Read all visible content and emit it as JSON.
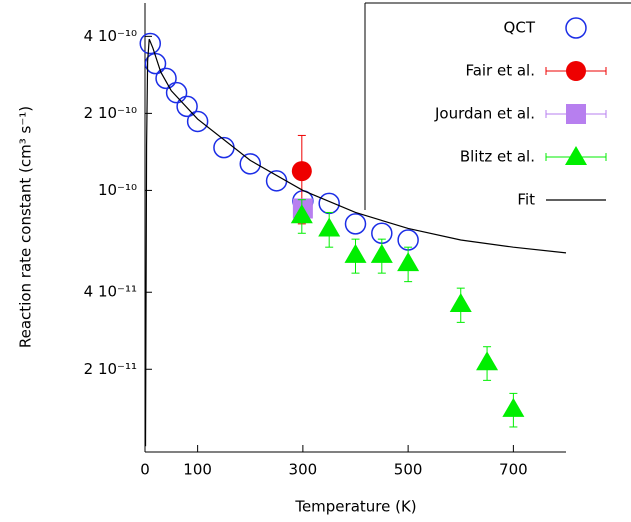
{
  "chart_data": {
    "type": "scatter",
    "xlabel": "Temperature (K)",
    "ylabel": "Reaction rate constant (cm³ s⁻¹)",
    "xlim": [
      0,
      800
    ],
    "xticks": [
      0,
      100,
      300,
      500,
      700
    ],
    "ylim": [
      9.5e-12,
      5.4e-10
    ],
    "yscale": "log",
    "yticks": [
      {
        "value": 4e-10,
        "label": "4 10⁻¹⁰"
      },
      {
        "value": 2e-10,
        "label": "2 10⁻¹⁰"
      },
      {
        "value": 1e-10,
        "label": "10⁻¹⁰"
      },
      {
        "value": 4e-11,
        "label": "4 10⁻¹¹"
      },
      {
        "value": 2e-11,
        "label": "2 10⁻¹¹"
      }
    ],
    "legend": "upper right",
    "series": [
      {
        "name": "QCT",
        "color": "#1c2ee6",
        "marker": "open-circle",
        "x": [
          10,
          20,
          40,
          60,
          80,
          100,
          150,
          200,
          250,
          300,
          350,
          400,
          450,
          500
        ],
        "values": [
          3.75e-10,
          3.13e-10,
          2.74e-10,
          2.41e-10,
          2.13e-10,
          1.86e-10,
          1.47e-10,
          1.27e-10,
          1.09e-10,
          9.1e-11,
          8.9e-11,
          7.4e-11,
          6.8e-11,
          6.4e-11
        ]
      },
      {
        "name": "Fair et al.",
        "color": "#ee0000",
        "marker": "circle",
        "x": [
          298
        ],
        "values": [
          1.19e-10
        ],
        "errors": [
          4.5e-11
        ]
      },
      {
        "name": "Jourdan et al.",
        "color": "#b77fef",
        "marker": "square",
        "x": [
          300
        ],
        "values": [
          8.5e-11
        ],
        "errors": [
          5e-12
        ]
      },
      {
        "name": "Blitz et al.",
        "color": "#00ee00",
        "marker": "triangle",
        "x": [
          298,
          350,
          400,
          450,
          500,
          600,
          650,
          700
        ],
        "values": [
          8e-11,
          7.1e-11,
          5.6e-11,
          5.6e-11,
          5.2e-11,
          3.6e-11,
          2.13e-11,
          1.4e-11
        ],
        "errors": [
          1.2e-11,
          1.1e-11,
          8.5e-12,
          8.5e-12,
          8e-12,
          5.5e-12,
          3.2e-12,
          2.1e-12
        ]
      },
      {
        "name": "Fit",
        "color": "#000000",
        "marker": "line",
        "x": [
          1,
          3,
          5,
          8,
          15,
          30,
          50,
          100,
          200,
          300,
          400,
          500,
          600,
          700,
          800
        ],
        "values": [
          1e-11,
          1.5e-10,
          3.2e-10,
          3.9e-10,
          3.6e-10,
          2.9e-10,
          2.45e-10,
          1.9e-10,
          1.31e-10,
          1e-10,
          8.2e-11,
          7.1e-11,
          6.4e-11,
          6e-11,
          5.7e-11
        ]
      }
    ]
  }
}
